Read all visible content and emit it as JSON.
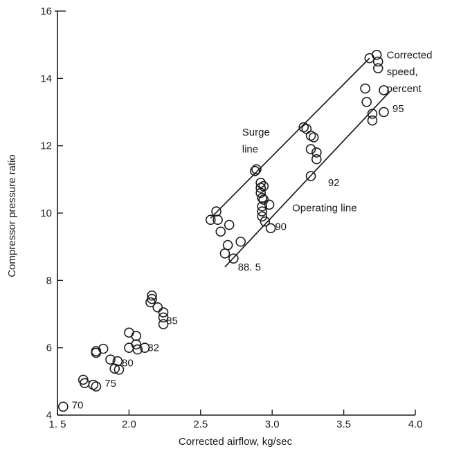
{
  "chart_data": {
    "type": "scatter",
    "title": "",
    "xlabel": "Corrected airflow, kg/sec",
    "ylabel": "Compressor pressure ratio",
    "xlim": [
      1.5,
      4.0
    ],
    "ylim": [
      4,
      16
    ],
    "xticks": [
      1.5,
      2.0,
      2.5,
      3.0,
      3.5,
      4.0
    ],
    "xtick_labels": [
      "1. 5",
      "2.0",
      "2.5",
      "3.0",
      "3.5",
      "4.0"
    ],
    "yticks": [
      4,
      6,
      8,
      10,
      12,
      14,
      16
    ],
    "ytick_labels": [
      "4",
      "6",
      "8",
      "10",
      "12",
      "14",
      "16"
    ],
    "grid": false,
    "series": [
      {
        "values": [
          [
            1.54,
            4.25
          ],
          [
            1.68,
            5.05
          ],
          [
            1.69,
            4.95
          ],
          [
            1.75,
            4.9
          ],
          [
            1.77,
            4.85
          ],
          [
            1.77,
            5.85
          ],
          [
            1.77,
            5.9
          ],
          [
            1.82,
            5.97
          ],
          [
            1.87,
            5.65
          ],
          [
            1.9,
            5.38
          ],
          [
            1.92,
            5.6
          ],
          [
            1.93,
            5.35
          ],
          [
            2.0,
            6.45
          ],
          [
            2.0,
            6.0
          ],
          [
            2.05,
            6.35
          ],
          [
            2.05,
            6.1
          ],
          [
            2.06,
            5.95
          ],
          [
            2.11,
            6.0
          ],
          [
            2.15,
            7.35
          ],
          [
            2.16,
            7.45
          ],
          [
            2.16,
            7.55
          ],
          [
            2.2,
            7.2
          ],
          [
            2.24,
            7.05
          ],
          [
            2.24,
            6.9
          ],
          [
            2.24,
            6.7
          ],
          [
            2.57,
            9.8
          ],
          [
            2.61,
            10.05
          ],
          [
            2.62,
            9.8
          ],
          [
            2.64,
            9.45
          ],
          [
            2.69,
            9.05
          ],
          [
            2.67,
            8.8
          ],
          [
            2.7,
            9.65
          ],
          [
            2.73,
            8.65
          ],
          [
            2.78,
            9.15
          ],
          [
            2.88,
            11.25
          ],
          [
            2.89,
            11.3
          ],
          [
            2.92,
            10.9
          ],
          [
            2.92,
            10.75
          ],
          [
            2.92,
            10.6
          ],
          [
            2.93,
            10.45
          ],
          [
            2.93,
            10.2
          ],
          [
            2.93,
            10.05
          ],
          [
            2.93,
            9.9
          ],
          [
            2.94,
            10.8
          ],
          [
            2.94,
            10.4
          ],
          [
            2.95,
            9.75
          ],
          [
            2.98,
            10.25
          ],
          [
            2.99,
            9.55
          ],
          [
            3.22,
            12.55
          ],
          [
            3.24,
            12.5
          ],
          [
            3.27,
            12.3
          ],
          [
            3.29,
            12.25
          ],
          [
            3.27,
            11.9
          ],
          [
            3.31,
            11.8
          ],
          [
            3.31,
            11.6
          ],
          [
            3.27,
            11.1
          ],
          [
            3.65,
            13.7
          ],
          [
            3.66,
            13.3
          ],
          [
            3.68,
            14.6
          ],
          [
            3.7,
            12.95
          ],
          [
            3.7,
            12.75
          ],
          [
            3.73,
            14.7
          ],
          [
            3.74,
            14.5
          ],
          [
            3.74,
            14.3
          ],
          [
            3.78,
            13.65
          ],
          [
            3.78,
            13.0
          ]
        ]
      }
    ],
    "lines": [
      {
        "label": "Surge line",
        "points": [
          [
            2.57,
            9.85
          ],
          [
            3.68,
            14.6
          ]
        ]
      },
      {
        "label": "Operating line",
        "points": [
          [
            2.67,
            8.4
          ],
          [
            3.82,
            13.6
          ]
        ]
      }
    ],
    "annotations": [
      {
        "text": "70",
        "x": 1.6,
        "y": 4.3
      },
      {
        "text": "75",
        "x": 1.83,
        "y": 4.95
      },
      {
        "text": "80",
        "x": 1.95,
        "y": 5.55
      },
      {
        "text": "82",
        "x": 2.13,
        "y": 6.0
      },
      {
        "text": "85",
        "x": 2.26,
        "y": 6.8
      },
      {
        "text": "88. 5",
        "x": 2.76,
        "y": 8.4
      },
      {
        "text": "90",
        "x": 3.02,
        "y": 9.6
      },
      {
        "text": "92",
        "x": 3.39,
        "y": 10.9
      },
      {
        "text": "95",
        "x": 3.84,
        "y": 13.1
      },
      {
        "text": "Surge",
        "x": 2.79,
        "y": 12.4
      },
      {
        "text": "line",
        "x": 2.79,
        "y": 11.9
      },
      {
        "text": "Operating line",
        "x": 3.14,
        "y": 10.15
      },
      {
        "text": "Corrected",
        "x": 3.8,
        "y": 14.7
      },
      {
        "text": "speed,",
        "x": 3.8,
        "y": 14.2
      },
      {
        "text": "percent",
        "x": 3.8,
        "y": 13.7
      }
    ]
  }
}
